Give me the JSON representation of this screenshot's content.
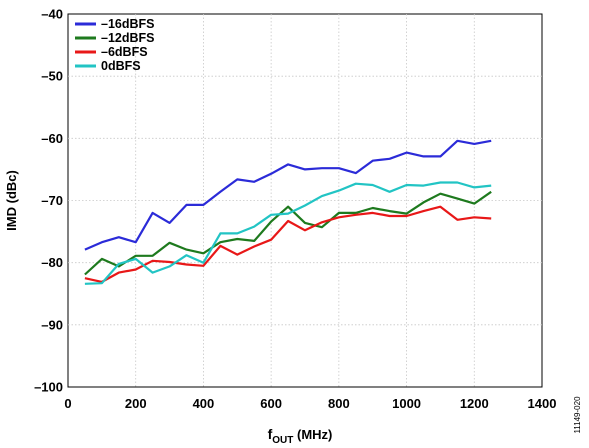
{
  "chart_data": {
    "type": "line",
    "xlabel_main": "f",
    "xlabel_sub": "OUT",
    "xlabel_unit": " (MHz)",
    "ylabel": "IMD (dBc)",
    "xlim": [
      0,
      1400
    ],
    "ylim": [
      -100,
      -40
    ],
    "xticks": [
      0,
      200,
      400,
      600,
      800,
      1000,
      1200,
      1400
    ],
    "yticks": [
      -100,
      -90,
      -80,
      -70,
      -60,
      -50,
      -40
    ],
    "xtick_labels": [
      "0",
      "200",
      "400",
      "600",
      "800",
      "1000",
      "1200",
      "1400"
    ],
    "ytick_labels": [
      "–100",
      "–90",
      "–80",
      "–70",
      "–60",
      "–50",
      "–40"
    ],
    "grid": true,
    "legend_position": "top-left",
    "x": [
      50,
      100,
      150,
      200,
      250,
      300,
      350,
      400,
      450,
      500,
      550,
      600,
      650,
      700,
      750,
      800,
      850,
      900,
      950,
      1000,
      1050,
      1100,
      1150,
      1200,
      1250
    ],
    "series": [
      {
        "name": "–16dBFS",
        "color": "#2b2bd8",
        "values": [
          -77.9,
          -76.7,
          -75.9,
          -76.7,
          -72.0,
          -73.6,
          -70.7,
          -70.7,
          -68.6,
          -66.6,
          -67.0,
          -65.7,
          -64.2,
          -65.0,
          -64.8,
          -64.8,
          -65.6,
          -63.6,
          -63.3,
          -62.3,
          -62.9,
          -62.9,
          -60.4,
          -60.9,
          -60.4
        ]
      },
      {
        "name": "–12dBFS",
        "color": "#1e7a1e",
        "values": [
          -81.9,
          -79.4,
          -80.6,
          -78.9,
          -78.9,
          -76.8,
          -77.9,
          -78.5,
          -76.7,
          -76.2,
          -76.5,
          -73.4,
          -71.0,
          -73.6,
          -74.3,
          -72.0,
          -72.0,
          -71.2,
          -71.7,
          -72.1,
          -70.3,
          -68.9,
          -69.7,
          -70.5,
          -68.6
        ]
      },
      {
        "name": "–6dBFS",
        "color": "#e81818",
        "values": [
          -82.5,
          -83.1,
          -81.6,
          -81.1,
          -79.7,
          -79.9,
          -80.3,
          -80.5,
          -77.3,
          -78.7,
          -77.4,
          -76.3,
          -73.3,
          -74.8,
          -73.5,
          -72.7,
          -72.3,
          -72.0,
          -72.5,
          -72.5,
          -71.7,
          -71.0,
          -73.1,
          -72.7,
          -72.9
        ]
      },
      {
        "name": "0dBFS",
        "color": "#22c4c4",
        "values": [
          -83.4,
          -83.3,
          -80.2,
          -79.4,
          -81.6,
          -80.6,
          -78.8,
          -80.0,
          -75.3,
          -75.3,
          -74.2,
          -72.3,
          -72.1,
          -70.8,
          -69.3,
          -68.4,
          -67.3,
          -67.5,
          -68.6,
          -67.5,
          -67.6,
          -67.1,
          -67.1,
          -67.9,
          -67.6
        ]
      }
    ]
  },
  "figure_id": "11149-020"
}
